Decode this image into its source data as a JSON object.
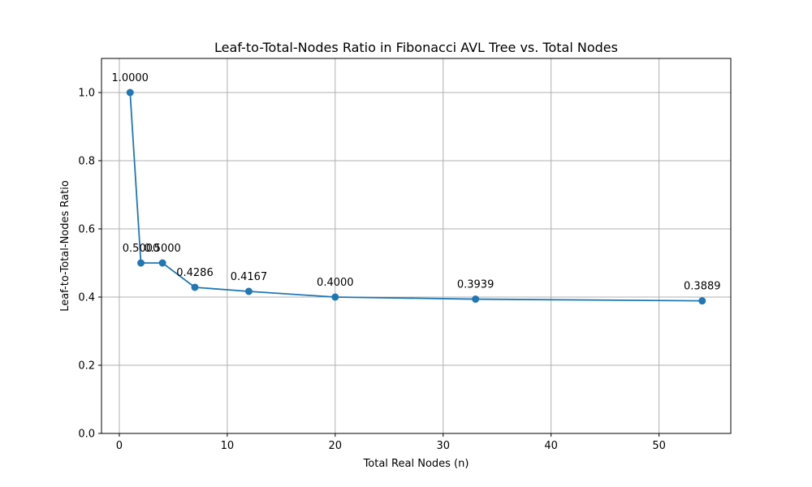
{
  "chart_data": {
    "type": "line",
    "title": "Leaf-to-Total-Nodes Ratio in Fibonacci AVL Tree vs. Total Nodes",
    "xlabel": "Total Real Nodes (n)",
    "ylabel": "Leaf-to-Total-Nodes Ratio",
    "xlim": [
      -1.65,
      56.65
    ],
    "ylim": [
      0,
      1.1
    ],
    "xticks": [
      0,
      10,
      20,
      30,
      40,
      50
    ],
    "yticks": [
      0.0,
      0.2,
      0.4,
      0.6,
      0.8,
      1.0
    ],
    "ytick_labels": [
      "0.0",
      "0.2",
      "0.4",
      "0.6",
      "0.8",
      "1.0"
    ],
    "grid": true,
    "series": [
      {
        "x": [
          1,
          2,
          4,
          7,
          12,
          20,
          33,
          54
        ],
        "y": [
          1.0,
          0.5,
          0.5,
          0.4286,
          0.4167,
          0.4,
          0.3939,
          0.3889
        ],
        "labels": [
          "1.0000",
          "0.5000",
          "0.5000",
          "0.4286",
          "0.4167",
          "0.4000",
          "0.3939",
          "0.3889"
        ],
        "color": "#1f77b4",
        "marker": "circle"
      }
    ]
  }
}
